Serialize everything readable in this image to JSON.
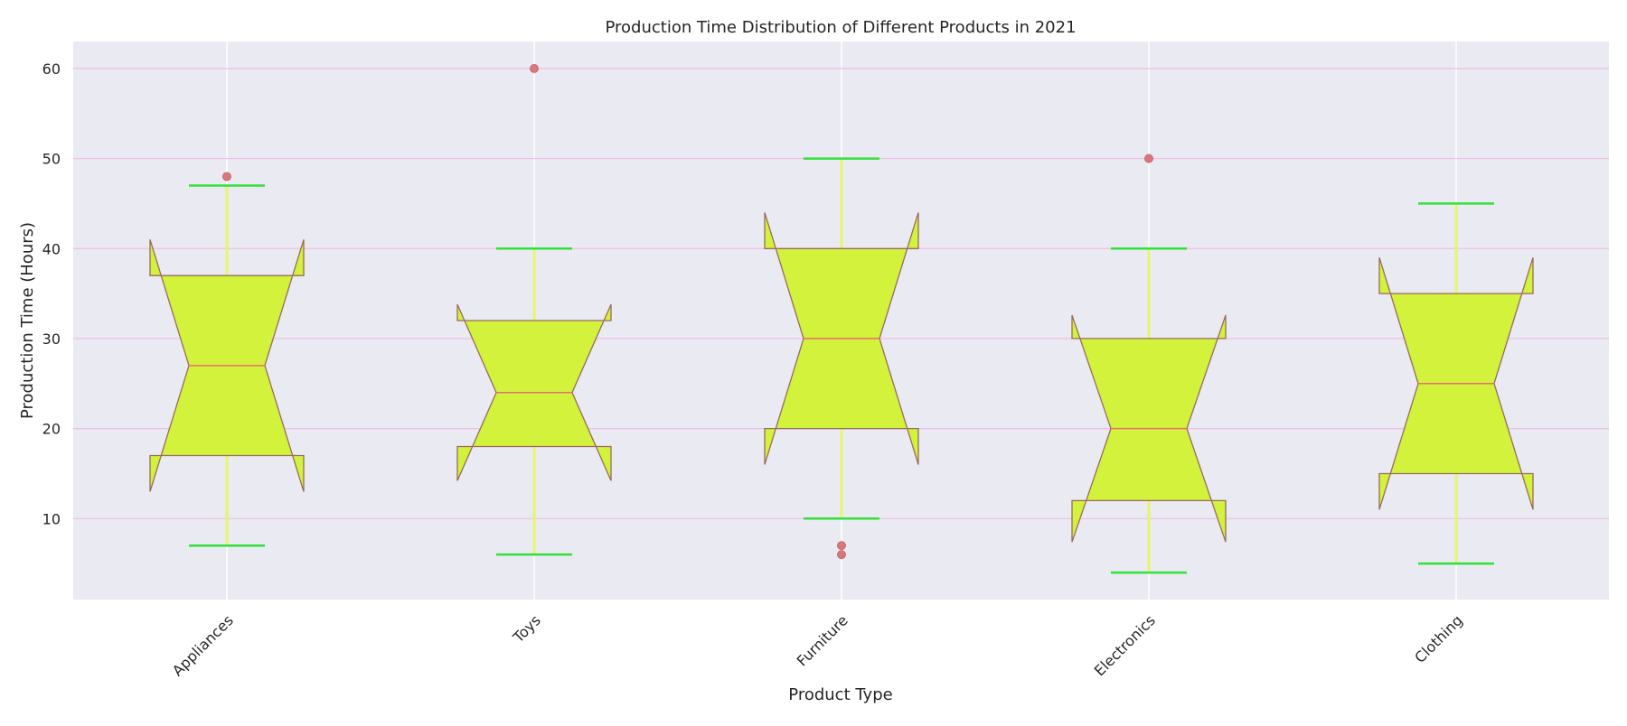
{
  "chart_data": {
    "type": "box",
    "notched": true,
    "title": "Production Time Distribution of Different Products in 2021",
    "xlabel": "Product Type",
    "ylabel": "Production Time (Hours)",
    "ylim": [
      1,
      63
    ],
    "yticks": [
      10,
      20,
      30,
      40,
      50,
      60
    ],
    "grid": true,
    "categories": [
      "Appliances",
      "Toys",
      "Furniture",
      "Electronics",
      "Clothing"
    ],
    "boxes": [
      {
        "category": "Appliances",
        "whisker_low": 7,
        "q1": 17,
        "median": 27,
        "q3": 37,
        "whisker_high": 47,
        "notch_low": 13,
        "notch_high": 41,
        "outliers": [
          48
        ]
      },
      {
        "category": "Toys",
        "whisker_low": 6,
        "q1": 18,
        "median": 24,
        "q3": 32,
        "whisker_high": 40,
        "notch_low": 14.2,
        "notch_high": 33.8,
        "outliers": [
          60
        ]
      },
      {
        "category": "Furniture",
        "whisker_low": 10,
        "q1": 20,
        "median": 30,
        "q3": 40,
        "whisker_high": 50,
        "notch_low": 16,
        "notch_high": 44,
        "outliers": [
          7,
          6
        ]
      },
      {
        "category": "Electronics",
        "whisker_low": 4,
        "q1": 12,
        "median": 20,
        "q3": 30,
        "whisker_high": 40,
        "notch_low": 7.4,
        "notch_high": 32.6,
        "outliers": [
          50
        ]
      },
      {
        "category": "Clothing",
        "whisker_low": 5,
        "q1": 15,
        "median": 25,
        "q3": 35,
        "whisker_high": 45,
        "notch_low": 11,
        "notch_high": 39,
        "outliers": []
      }
    ],
    "colors": {
      "plot_background": "#eaeaf2",
      "grid_vertical": "#ffffff",
      "grid_horizontal": "#f0bbe6",
      "box_fill": "#d2f23c",
      "box_edge": "#9b6b5b",
      "median": "#e8706a",
      "whisker": "#e8f56a",
      "cap": "#33e03a",
      "outlier": "#d9787a"
    }
  }
}
